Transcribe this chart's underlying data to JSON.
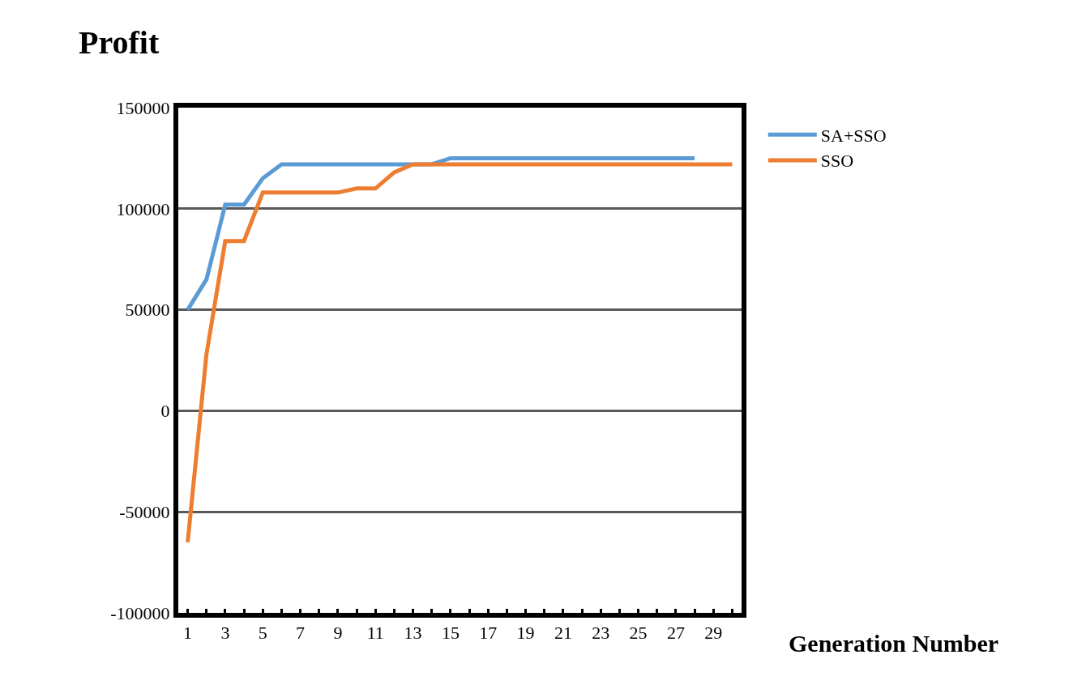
{
  "chart_data": {
    "type": "line",
    "xlabel": "Generation Number",
    "ylabel": "Profit",
    "x": [
      1,
      2,
      3,
      4,
      5,
      6,
      7,
      8,
      9,
      10,
      11,
      12,
      13,
      14,
      15,
      16,
      17,
      18,
      19,
      20,
      21,
      22,
      23,
      24,
      25,
      26,
      27,
      28,
      29,
      30
    ],
    "series": [
      {
        "name": "SA+SSO",
        "color": "#5b9bd5",
        "x": [
          1,
          2,
          3,
          4,
          5,
          6,
          7,
          8,
          9,
          10,
          11,
          12,
          13,
          14,
          15,
          16,
          17,
          18,
          19,
          20,
          21,
          22,
          23,
          24,
          25,
          26,
          27,
          28
        ],
        "values": [
          50000,
          65000,
          102000,
          102000,
          115000,
          122000,
          122000,
          122000,
          122000,
          122000,
          122000,
          122000,
          122000,
          122000,
          125000,
          125000,
          125000,
          125000,
          125000,
          125000,
          125000,
          125000,
          125000,
          125000,
          125000,
          125000,
          125000,
          125000
        ]
      },
      {
        "name": "SSO",
        "color": "#ed7d31",
        "values": [
          -65000,
          28000,
          84000,
          84000,
          108000,
          108000,
          108000,
          108000,
          108000,
          110000,
          110000,
          118000,
          122000,
          122000,
          122000,
          122000,
          122000,
          122000,
          122000,
          122000,
          122000,
          122000,
          122000,
          122000,
          122000,
          122000,
          122000,
          122000,
          122000,
          122000
        ]
      }
    ],
    "xlim": [
      0.5,
      30.5
    ],
    "xticks": [
      1,
      {
        "value": 2,
        "label": null
      },
      3,
      {
        "value": 4,
        "label": null
      },
      5,
      {
        "value": 6,
        "label": null
      },
      7,
      {
        "value": 8,
        "label": null
      },
      9,
      {
        "value": 10,
        "label": null
      },
      11,
      {
        "value": 12,
        "label": null
      },
      13,
      {
        "value": 14,
        "label": null
      },
      15,
      {
        "value": 16,
        "label": null
      },
      17,
      {
        "value": 18,
        "label": null
      },
      19,
      {
        "value": 20,
        "label": null
      },
      21,
      {
        "value": 22,
        "label": null
      },
      23,
      {
        "value": 24,
        "label": null
      },
      25,
      {
        "value": 26,
        "label": null
      },
      27,
      {
        "value": 28,
        "label": null
      },
      29,
      {
        "value": 30,
        "label": null
      }
    ],
    "ylim": [
      -100000,
      150000
    ],
    "yticks": [
      -100000,
      -50000,
      0,
      50000,
      100000,
      150000
    ],
    "grid": "y",
    "legend": "top right",
    "marker": "none",
    "line_style": "solid"
  }
}
